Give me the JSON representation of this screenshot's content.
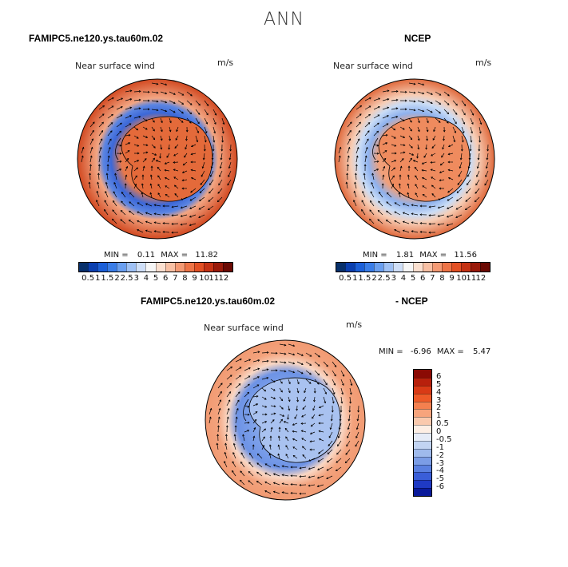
{
  "title": "ANN",
  "panels": [
    {
      "id": "model",
      "case_title": "FAMIPC5.ne120.ys.tau60m.02",
      "variable": "Near surface wind",
      "units": "m/s",
      "min_label": "MIN =",
      "min_value": "0.11",
      "max_label": "MAX =",
      "max_value": "11.82"
    },
    {
      "id": "obs",
      "case_title": "NCEP",
      "variable": "Near surface wind",
      "units": "m/s",
      "min_label": "MIN =",
      "min_value": "1.81",
      "max_label": "MAX =",
      "max_value": "11.56"
    },
    {
      "id": "diff",
      "case_title": "FAMIPC5.ne120.ys.tau60m.02",
      "case_title_right": "- NCEP",
      "variable": "Near surface wind",
      "units": "m/s",
      "min_label": "MIN =",
      "min_value": "-6.96",
      "max_label": "MAX =",
      "max_value": "5.47"
    }
  ],
  "colorbar_abs": {
    "labels": [
      "0.5",
      "1",
      "1.5",
      "2",
      "2.5",
      "3",
      "4",
      "5",
      "6",
      "7",
      "8",
      "9",
      "10",
      "11",
      "12"
    ],
    "colors": [
      "#08306b",
      "#0b3fb0",
      "#1c5fd8",
      "#3a7de8",
      "#6a9ff0",
      "#9fc1f5",
      "#cfdff8",
      "#f6f6f6",
      "#fbe0d0",
      "#f8c0a4",
      "#f49a74",
      "#ee7447",
      "#e35024",
      "#c53214",
      "#9a1a0a",
      "#6b0a04"
    ]
  },
  "colorbar_diff": {
    "labels": [
      "6",
      "5",
      "4",
      "3",
      "2",
      "1",
      "0.5",
      "0",
      "-0.5",
      "-1",
      "-2",
      "-3",
      "-4",
      "-5",
      "-6"
    ],
    "colors": [
      "#8b0a04",
      "#b8200c",
      "#d93a16",
      "#ee5a28",
      "#f4804f",
      "#f7a47c",
      "#fac9ad",
      "#fdeee4",
      "#e6ecf8",
      "#c2d4f2",
      "#9fbaec",
      "#7b9de6",
      "#5a80e0",
      "#3a5ed8",
      "#1f3ac4",
      "#0a1a9a"
    ]
  },
  "icons": {
    "map": "antarctic-polar-projection"
  }
}
